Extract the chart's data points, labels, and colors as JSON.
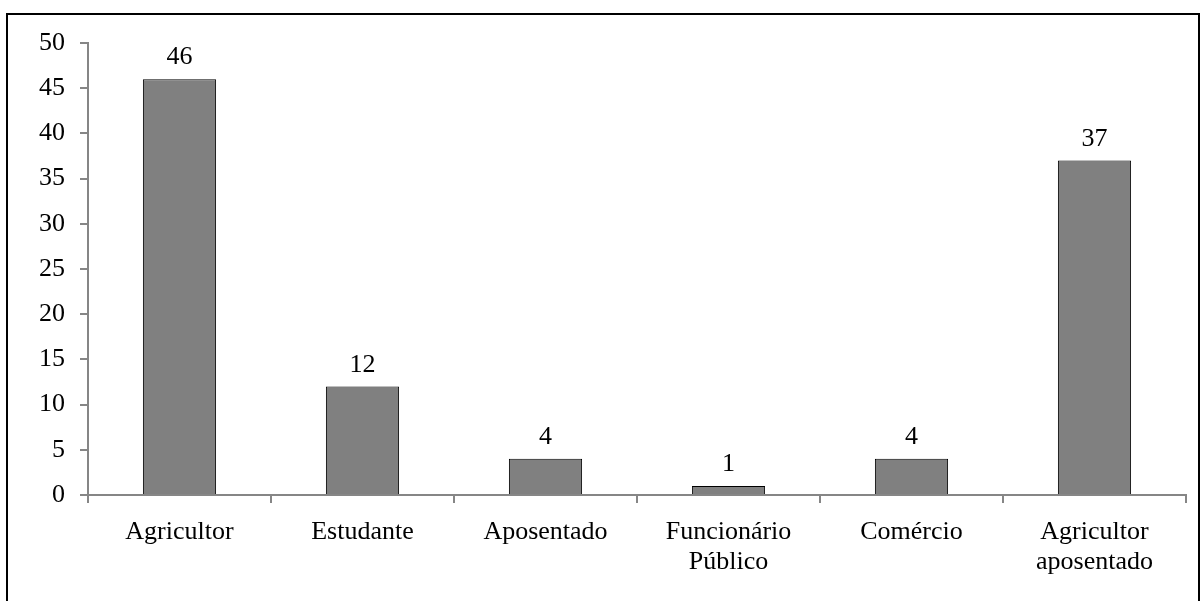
{
  "chart_data": {
    "type": "bar",
    "categories": [
      "Agricultor",
      "Estudante",
      "Aposentado",
      "Funcionário Público",
      "Comércio",
      "Agricultor aposentado"
    ],
    "values": [
      46,
      12,
      4,
      1,
      4,
      37
    ],
    "color": "#808080",
    "ylim": [
      0,
      50
    ],
    "yticks": [
      0,
      5,
      10,
      15,
      20,
      25,
      30,
      35,
      40,
      45,
      50
    ],
    "grid": false,
    "data_labels": true
  }
}
